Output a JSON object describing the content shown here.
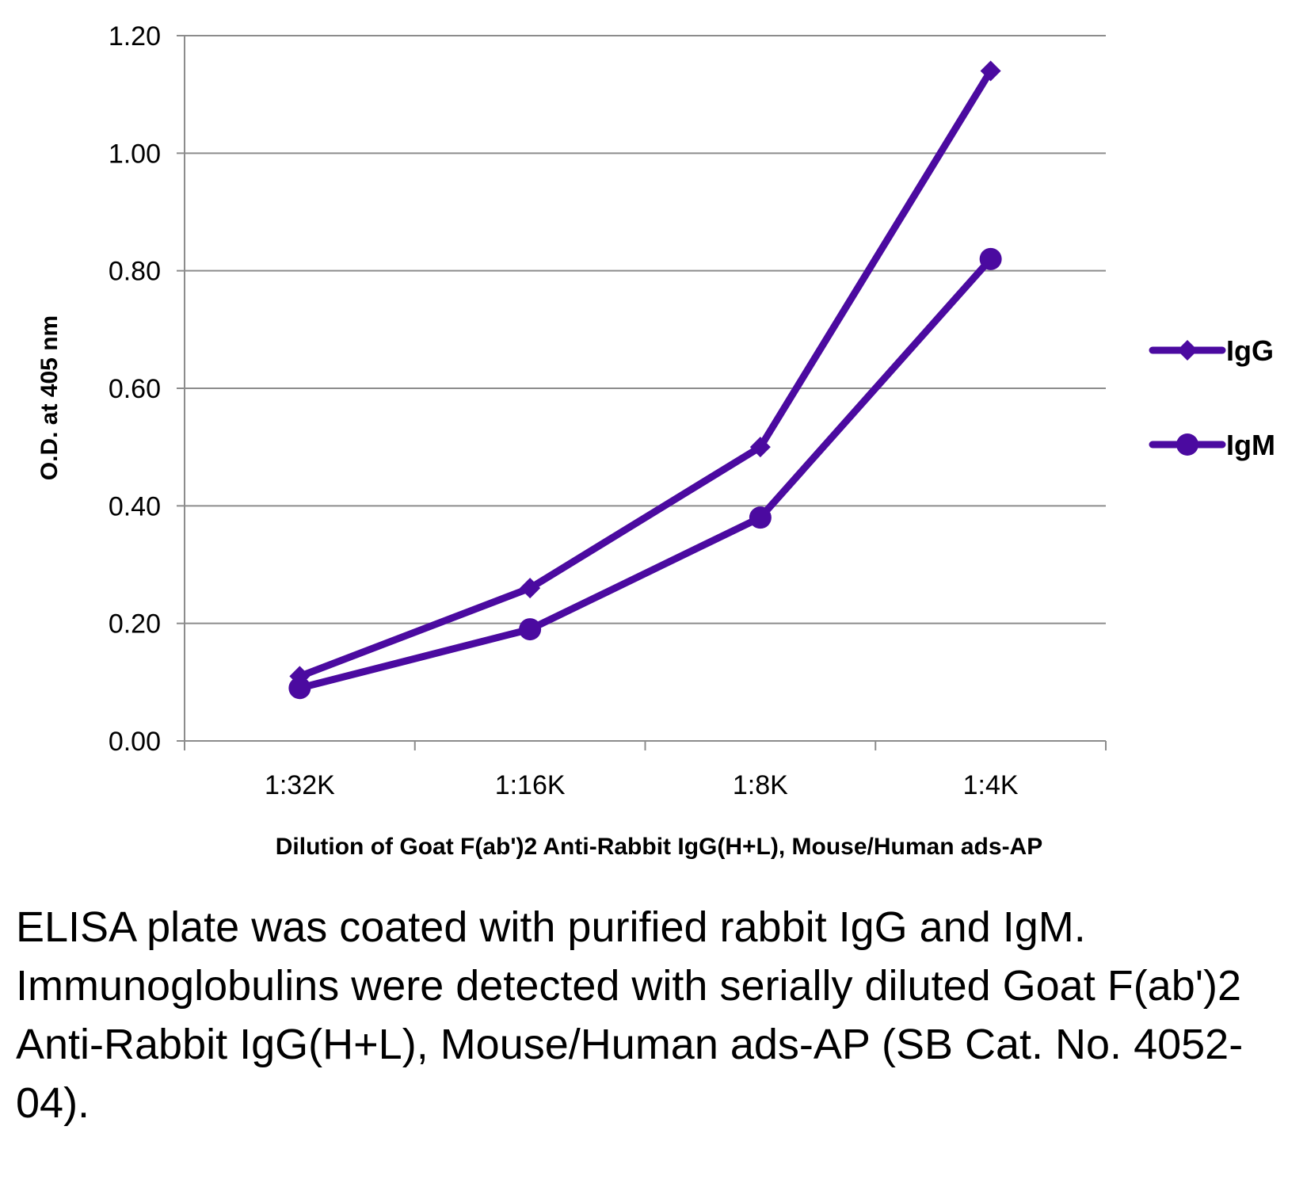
{
  "chart_data": {
    "type": "line",
    "categories": [
      "1:32K",
      "1:16K",
      "1:8K",
      "1:4K"
    ],
    "series": [
      {
        "name": "IgG",
        "values": [
          0.11,
          0.26,
          0.5,
          1.14
        ],
        "marker": "diamond"
      },
      {
        "name": "IgM",
        "values": [
          0.09,
          0.19,
          0.38,
          0.82
        ],
        "marker": "circle"
      }
    ],
    "yticks": [
      "0.00",
      "0.20",
      "0.40",
      "0.60",
      "0.80",
      "1.00",
      "1.20"
    ],
    "ylim": [
      0,
      1.2
    ],
    "ylabel": "O.D. at 405 nm",
    "xlabel": "Dilution of Goat F(ab')2 Anti-Rabbit IgG(H+L), Mouse/Human ads-AP",
    "grid": true,
    "legend_position": "right",
    "line_color": "#4b0aa0"
  },
  "caption": "ELISA plate was coated with purified rabbit IgG and IgM.  Immunoglobulins were detected with serially diluted Goat F(ab')2 Anti-Rabbit IgG(H+L), Mouse/Human ads-AP (SB Cat. No. 4052-04)."
}
